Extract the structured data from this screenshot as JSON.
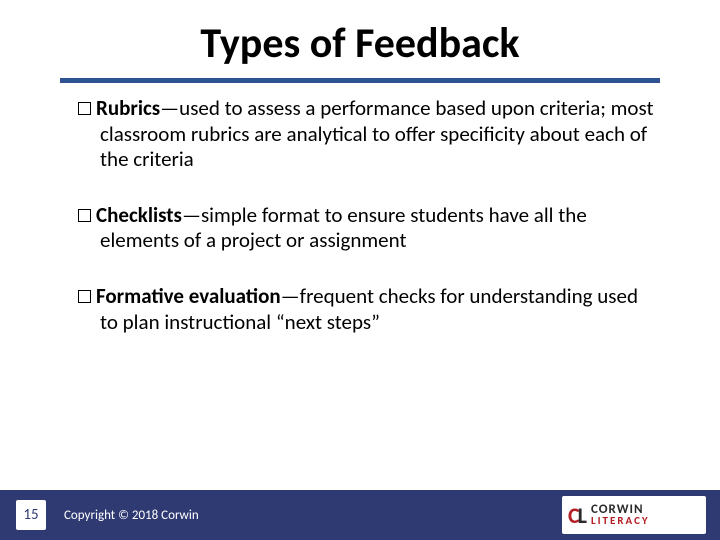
{
  "title": "Types of Feedback",
  "items": [
    {
      "term": "Rubrics",
      "desc": "—used to assess a performance based upon criteria; most classroom rubrics are analytical to offer specificity about each of the criteria"
    },
    {
      "term": "Checklists",
      "desc": "—simple format to ensure students have all the elements of a project or assignment"
    },
    {
      "term": "Formative evaluation",
      "desc": "—frequent checks for understanding used to plan instructional “next steps”"
    }
  ],
  "page_number": "15",
  "copyright": "Copyright © 2018 Corwin",
  "logo": {
    "cl_c": "C",
    "cl_l": "L",
    "main": "CORWIN",
    "sub": "LITERACY"
  },
  "colors": {
    "accent_underline": "#2f5290",
    "footer_bg": "#2f3a73",
    "brand_red": "#b31f24",
    "text": "#000000"
  }
}
